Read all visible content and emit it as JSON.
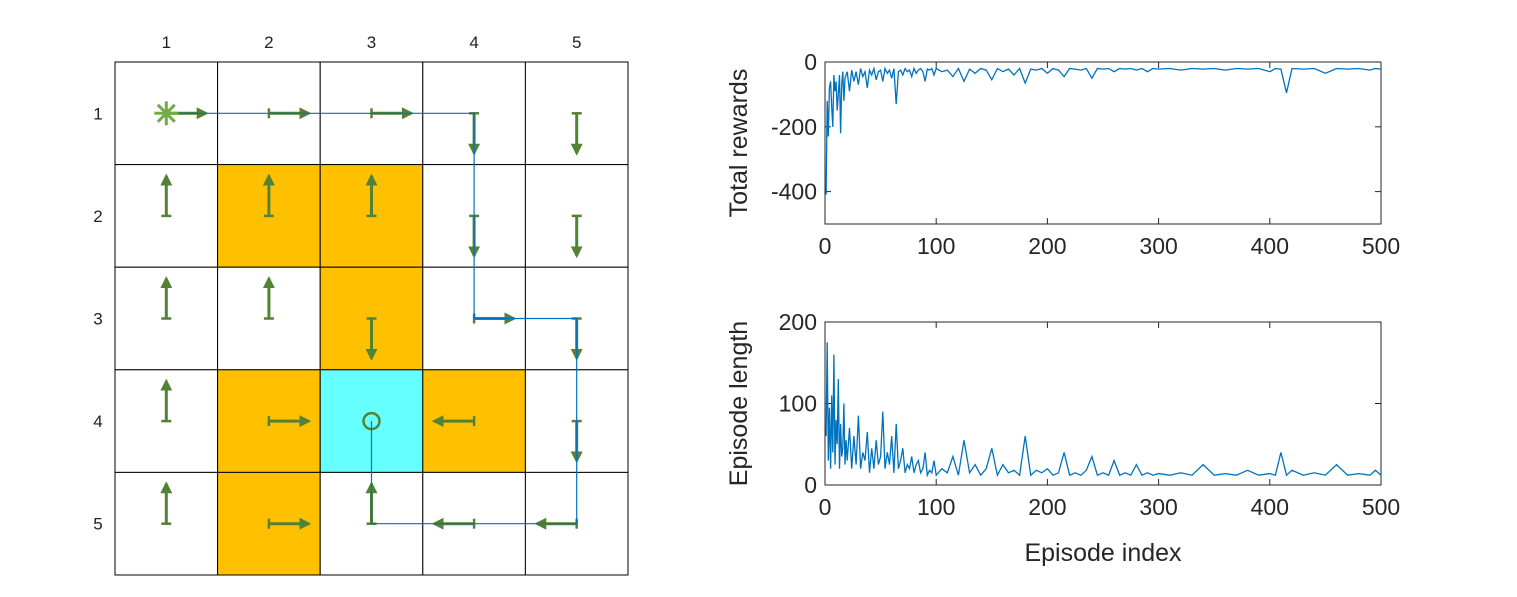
{
  "grid": {
    "rows": 5,
    "cols": 5,
    "col_labels": [
      "1",
      "2",
      "3",
      "4",
      "5"
    ],
    "row_labels": [
      "1",
      "2",
      "3",
      "4",
      "5"
    ],
    "forbidden_cells": [
      [
        2,
        2
      ],
      [
        2,
        3
      ],
      [
        3,
        3
      ],
      [
        4,
        2
      ],
      [
        4,
        4
      ],
      [
        5,
        2
      ]
    ],
    "target_cell": [
      4,
      3
    ],
    "start_cell": [
      1,
      1
    ],
    "policy": [
      [
        "right",
        "right",
        "right",
        "down",
        "down"
      ],
      [
        "up",
        "up",
        "up",
        "down",
        "down"
      ],
      [
        "up",
        "up",
        "down",
        "right",
        "down"
      ],
      [
        "up",
        "right",
        "stay",
        "left",
        "down"
      ],
      [
        "up",
        "right",
        "up",
        "left",
        "left"
      ]
    ],
    "trajectory": [
      [
        1,
        1
      ],
      [
        1,
        2
      ],
      [
        1,
        3
      ],
      [
        1,
        4
      ],
      [
        2,
        4
      ],
      [
        3,
        4
      ],
      [
        3,
        5
      ],
      [
        4,
        5
      ],
      [
        5,
        5
      ],
      [
        5,
        4
      ],
      [
        5,
        3
      ],
      [
        4,
        3
      ]
    ],
    "colors": {
      "forbidden": "#ffc000",
      "target": "#66ffff",
      "arrow": "#548235",
      "start_marker": "#70ad47",
      "trajectory": "#0070c0",
      "grid_line": "#000000"
    }
  },
  "chart_data": [
    {
      "type": "line",
      "ylabel": "Total rewards",
      "xlim": [
        0,
        500
      ],
      "ylim": [
        -500,
        0
      ],
      "xticks": [
        "0",
        "100",
        "200",
        "300",
        "400",
        "500"
      ],
      "yticks": [
        "-400",
        "-200",
        "0"
      ],
      "series": [
        {
          "x": [
            1,
            2,
            3,
            4,
            5,
            6,
            7,
            8,
            9,
            10,
            11,
            12,
            13,
            14,
            15,
            16,
            17,
            18,
            19,
            20,
            22,
            24,
            26,
            28,
            30,
            32,
            34,
            36,
            38,
            40,
            42,
            44,
            46,
            48,
            50,
            52,
            54,
            56,
            58,
            60,
            62,
            64,
            66,
            68,
            70,
            72,
            74,
            76,
            78,
            80,
            82,
            84,
            86,
            88,
            90,
            92,
            94,
            96,
            98,
            100,
            105,
            110,
            115,
            120,
            125,
            130,
            135,
            140,
            145,
            150,
            155,
            160,
            165,
            170,
            175,
            180,
            185,
            190,
            195,
            200,
            205,
            210,
            215,
            220,
            225,
            230,
            235,
            240,
            245,
            250,
            255,
            260,
            265,
            270,
            275,
            280,
            285,
            290,
            295,
            300,
            310,
            320,
            330,
            340,
            350,
            360,
            370,
            380,
            390,
            400,
            405,
            410,
            415,
            420,
            430,
            440,
            450,
            460,
            470,
            480,
            490,
            495,
            500
          ],
          "y": [
            -410,
            -120,
            -230,
            -80,
            -60,
            -140,
            -200,
            -40,
            -90,
            -60,
            -150,
            -100,
            -40,
            -220,
            -70,
            -30,
            -120,
            -50,
            -40,
            -30,
            -90,
            -25,
            -60,
            -30,
            -70,
            -20,
            -45,
            -30,
            -80,
            -25,
            -40,
            -20,
            -55,
            -30,
            -25,
            -60,
            -20,
            -35,
            -25,
            -50,
            -20,
            -130,
            -30,
            -25,
            -40,
            -20,
            -30,
            -25,
            -45,
            -20,
            -35,
            -25,
            -20,
            -30,
            -60,
            -22,
            -25,
            -20,
            -40,
            -20,
            -30,
            -25,
            -45,
            -20,
            -60,
            -22,
            -35,
            -20,
            -25,
            -55,
            -20,
            -30,
            -22,
            -40,
            -20,
            -65,
            -22,
            -25,
            -20,
            -35,
            -20,
            -25,
            -45,
            -20,
            -22,
            -25,
            -20,
            -50,
            -20,
            -22,
            -20,
            -30,
            -20,
            -22,
            -20,
            -25,
            -20,
            -30,
            -20,
            -22,
            -20,
            -25,
            -20,
            -22,
            -20,
            -25,
            -20,
            -22,
            -20,
            -30,
            -20,
            -22,
            -95,
            -20,
            -22,
            -20,
            -35,
            -20,
            -22,
            -20,
            -25,
            -20,
            -22
          ]
        }
      ]
    },
    {
      "type": "line",
      "xlabel": "Episode index",
      "ylabel": "Episode length",
      "xlim": [
        0,
        500
      ],
      "ylim": [
        0,
        200
      ],
      "xticks": [
        "0",
        "100",
        "200",
        "300",
        "400",
        "500"
      ],
      "yticks": [
        "0",
        "100",
        "200"
      ],
      "series": [
        {
          "x": [
            1,
            2,
            3,
            4,
            5,
            6,
            7,
            8,
            9,
            10,
            11,
            12,
            13,
            14,
            15,
            16,
            17,
            18,
            19,
            20,
            22,
            24,
            26,
            28,
            30,
            32,
            34,
            36,
            38,
            40,
            42,
            44,
            46,
            48,
            50,
            52,
            54,
            56,
            58,
            60,
            62,
            64,
            66,
            68,
            70,
            72,
            74,
            76,
            78,
            80,
            82,
            84,
            86,
            88,
            90,
            92,
            94,
            96,
            98,
            100,
            105,
            110,
            115,
            120,
            125,
            130,
            135,
            140,
            145,
            150,
            155,
            160,
            165,
            170,
            175,
            180,
            185,
            190,
            195,
            200,
            205,
            210,
            215,
            220,
            225,
            230,
            235,
            240,
            245,
            250,
            255,
            260,
            265,
            270,
            275,
            280,
            285,
            290,
            295,
            300,
            310,
            320,
            330,
            340,
            350,
            360,
            370,
            380,
            390,
            400,
            405,
            410,
            415,
            420,
            430,
            440,
            450,
            460,
            470,
            480,
            490,
            495,
            500
          ],
          "y": [
            60,
            175,
            30,
            95,
            20,
            110,
            40,
            160,
            25,
            80,
            50,
            130,
            20,
            75,
            35,
            45,
            100,
            25,
            55,
            30,
            70,
            20,
            60,
            25,
            85,
            20,
            40,
            30,
            65,
            15,
            45,
            20,
            55,
            25,
            35,
            90,
            20,
            40,
            25,
            60,
            15,
            75,
            20,
            30,
            45,
            15,
            25,
            20,
            35,
            15,
            25,
            30,
            15,
            20,
            40,
            12,
            18,
            15,
            30,
            12,
            20,
            15,
            35,
            12,
            55,
            15,
            25,
            12,
            20,
            45,
            12,
            25,
            15,
            18,
            12,
            60,
            12,
            18,
            15,
            20,
            12,
            15,
            40,
            12,
            15,
            12,
            18,
            35,
            12,
            15,
            12,
            30,
            12,
            15,
            12,
            25,
            12,
            15,
            12,
            14,
            12,
            15,
            12,
            25,
            12,
            14,
            12,
            18,
            12,
            14,
            12,
            40,
            12,
            18,
            12,
            15,
            12,
            25,
            12,
            14,
            12,
            18,
            12
          ]
        }
      ]
    }
  ]
}
